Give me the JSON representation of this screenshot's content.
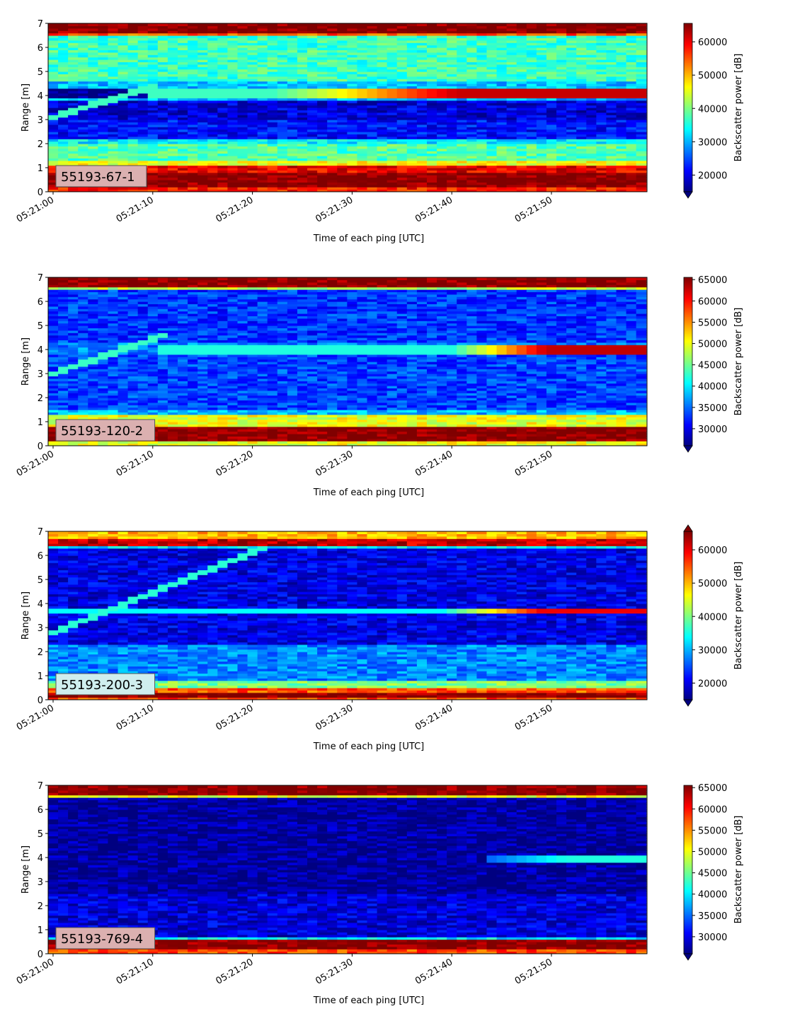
{
  "chart_data": [
    {
      "type": "heatmap",
      "id": "55193-67-1",
      "annotation": "55193-67-1",
      "xlabel": "Time of each ping [UTC]",
      "ylabel": "Range [m]",
      "x_start": "05:21:00",
      "x_end": "05:21:59",
      "xticks": [
        "05:21:00",
        "05:21:10",
        "05:21:20",
        "05:21:30",
        "05:21:40",
        "05:21:50"
      ],
      "ylim": [
        0,
        7
      ],
      "yticks": [
        "0",
        "1",
        "2",
        "3",
        "4",
        "5",
        "6",
        "7"
      ],
      "colormap": "jet",
      "colorbar_label": "Backscatter power [dB]",
      "colorbar_range": [
        15000,
        65535
      ],
      "colorbar_ticks": [
        "20000",
        "30000",
        "40000",
        "50000",
        "60000"
      ],
      "colorbar_extend": "min",
      "label_bg": "#dbb0b0",
      "bands": [
        {
          "y": [
            0.0,
            0.2
          ],
          "value": 58000
        },
        {
          "y": [
            0.2,
            0.85
          ],
          "value": 65535
        },
        {
          "y": [
            0.85,
            1.15
          ],
          "value": 60000
        },
        {
          "y": [
            1.15,
            1.35
          ],
          "value": 46000
        },
        {
          "y": [
            1.35,
            2.0
          ],
          "value": 38000
        },
        {
          "y": [
            2.0,
            2.2
          ],
          "value": 33000
        },
        {
          "y": [
            2.2,
            3.0
          ],
          "value": 22000
        },
        {
          "y": [
            3.0,
            3.8
          ],
          "value": 19500
        },
        {
          "y": [
            3.8,
            3.95
          ],
          "value": 30000
        },
        {
          "y": [
            4.3,
            4.6
          ],
          "value": 31000
        },
        {
          "y": [
            4.6,
            6.55
          ],
          "value": 37000
        },
        {
          "y": [
            6.55,
            6.65
          ],
          "value": 55000
        },
        {
          "y": [
            6.65,
            7.0
          ],
          "value": 65535
        }
      ],
      "diagonal": {
        "t0": 0,
        "t1": 10,
        "r0": 3.1,
        "r1": 4.4,
        "value": 37000
      },
      "echo_lines": [
        {
          "y": [
            3.95,
            4.3
          ],
          "t0": 10,
          "t1": 59,
          "v0": 37000,
          "v1": 62000,
          "ramp_start": 22
        }
      ]
    },
    {
      "type": "heatmap",
      "id": "55193-120-2",
      "annotation": "55193-120-2",
      "xlabel": "Time of each ping [UTC]",
      "ylabel": "Range [m]",
      "x_start": "05:21:00",
      "x_end": "05:21:59",
      "xticks": [
        "05:21:00",
        "05:21:10",
        "05:21:20",
        "05:21:30",
        "05:21:40",
        "05:21:50"
      ],
      "ylim": [
        0,
        7
      ],
      "yticks": [
        "0",
        "1",
        "2",
        "3",
        "4",
        "5",
        "6",
        "7"
      ],
      "colormap": "jet",
      "colorbar_label": "Backscatter power [dB]",
      "colorbar_range": [
        26000,
        65535
      ],
      "colorbar_ticks": [
        "30000",
        "35000",
        "40000",
        "45000",
        "50000",
        "55000",
        "60000",
        "65000"
      ],
      "colorbar_extend": "min",
      "label_bg": "#dbb0b0",
      "bands": [
        {
          "y": [
            0.0,
            0.2
          ],
          "value": 50000
        },
        {
          "y": [
            0.2,
            0.8
          ],
          "value": 65535
        },
        {
          "y": [
            0.8,
            1.35
          ],
          "value": 50000
        },
        {
          "y": [
            1.35,
            1.5
          ],
          "value": 38000
        },
        {
          "y": [
            1.5,
            3.8
          ],
          "value": 33500
        },
        {
          "y": [
            3.8,
            4.3
          ],
          "value": 36000
        },
        {
          "y": [
            4.3,
            6.55
          ],
          "value": 33000
        },
        {
          "y": [
            6.55,
            6.65
          ],
          "value": 48000
        },
        {
          "y": [
            6.65,
            7.0
          ],
          "value": 65535
        }
      ],
      "diagonal": {
        "t0": 0,
        "t1": 11,
        "r0": 3.0,
        "r1": 4.6,
        "value": 43000
      },
      "echo_lines": [
        {
          "y": [
            3.85,
            4.25
          ],
          "t0": 11,
          "t1": 59,
          "v0": 42000,
          "v1": 63000,
          "ramp_start": 40
        }
      ]
    },
    {
      "type": "heatmap",
      "id": "55193-200-3",
      "annotation": "55193-200-3",
      "xlabel": "Time of each ping [UTC]",
      "ylabel": "Range [m]",
      "x_start": "05:21:00",
      "x_end": "05:21:59",
      "xticks": [
        "05:21:00",
        "05:21:10",
        "05:21:20",
        "05:21:30",
        "05:21:40",
        "05:21:50"
      ],
      "ylim": [
        0,
        7
      ],
      "yticks": [
        "0",
        "1",
        "2",
        "3",
        "4",
        "5",
        "6",
        "7"
      ],
      "colormap": "jet",
      "colorbar_label": "Backscatter power [dB]",
      "colorbar_range": [
        15000,
        65535
      ],
      "colorbar_ticks": [
        "20000",
        "30000",
        "40000",
        "50000",
        "60000"
      ],
      "colorbar_extend": "both",
      "label_bg": "#cfeeee",
      "bands": [
        {
          "y": [
            0.0,
            0.1
          ],
          "value": 55000
        },
        {
          "y": [
            0.1,
            0.35
          ],
          "value": 65535
        },
        {
          "y": [
            0.35,
            0.5
          ],
          "value": 55000
        },
        {
          "y": [
            0.5,
            0.8
          ],
          "value": 40000
        },
        {
          "y": [
            0.8,
            2.3
          ],
          "value": 28000
        },
        {
          "y": [
            2.3,
            6.3
          ],
          "value": 20000
        },
        {
          "y": [
            6.3,
            6.45
          ],
          "value": 33000
        },
        {
          "y": [
            6.45,
            6.75
          ],
          "value": 62000
        },
        {
          "y": [
            6.75,
            7.0
          ],
          "value": 50000
        }
      ],
      "diagonal": {
        "t0": 0,
        "t1": 21,
        "r0": 2.8,
        "r1": 6.3,
        "value": 36000
      },
      "echo_lines": [
        {
          "y": [
            3.65,
            3.85
          ],
          "t0": 0,
          "t1": 59,
          "v0": 34000,
          "v1": 60000,
          "ramp_start": 39
        }
      ]
    },
    {
      "type": "heatmap",
      "id": "55193-769-4",
      "annotation": "55193-769-4",
      "xlabel": "Time of each ping [UTC]",
      "ylabel": "Range [m]",
      "x_start": "05:21:00",
      "x_end": "05:21:59",
      "xticks": [
        "05:21:00",
        "05:21:10",
        "05:21:20",
        "05:21:30",
        "05:21:40",
        "05:21:50"
      ],
      "ylim": [
        0,
        7
      ],
      "yticks": [
        "0",
        "1",
        "2",
        "3",
        "4",
        "5",
        "6",
        "7"
      ],
      "colormap": "jet",
      "colorbar_label": "Backscatter power [dB]",
      "colorbar_range": [
        26000,
        65535
      ],
      "colorbar_ticks": [
        "30000",
        "35000",
        "40000",
        "45000",
        "50000",
        "55000",
        "60000",
        "65000"
      ],
      "colorbar_extend": "min",
      "label_bg": "#dbb0b0",
      "bands": [
        {
          "y": [
            0.0,
            0.25
          ],
          "value": 58000
        },
        {
          "y": [
            0.25,
            0.6
          ],
          "value": 65535
        },
        {
          "y": [
            0.6,
            0.7
          ],
          "value": 40000
        },
        {
          "y": [
            0.7,
            2.5
          ],
          "value": 29500
        },
        {
          "y": [
            2.5,
            6.55
          ],
          "value": 27000
        },
        {
          "y": [
            6.55,
            6.65
          ],
          "value": 50000
        },
        {
          "y": [
            6.65,
            7.0
          ],
          "value": 65535
        }
      ],
      "diagonal": null,
      "echo_lines": [
        {
          "y": [
            3.85,
            4.15
          ],
          "t0": 44,
          "t1": 59,
          "v0": 35000,
          "v1": 42000,
          "ramp_start": 44
        }
      ]
    }
  ]
}
